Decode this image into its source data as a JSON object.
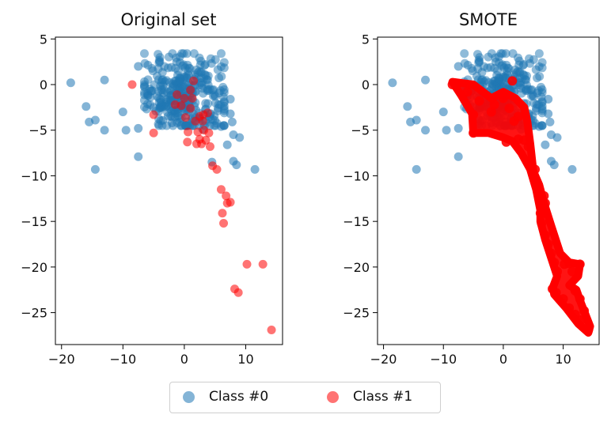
{
  "colors": {
    "class0": "#1f77b4",
    "class1": "#ff0000",
    "axis": "#000000"
  },
  "legend": {
    "class0_label": "Class #0",
    "class1_label": "Class #1"
  },
  "chart_data": [
    {
      "type": "scatter",
      "title": "Original set",
      "xlabel": "",
      "ylabel": "",
      "xlim": [
        -21,
        16
      ],
      "ylim": [
        -28.5,
        5.2
      ],
      "xticks": [
        -20,
        -10,
        0,
        10
      ],
      "yticks": [
        5,
        0,
        -5,
        -10,
        -15,
        -20,
        -25
      ],
      "series": [
        {
          "name": "Class #0",
          "cluster": {
            "center": [
              0,
              -1
            ],
            "spread": [
              3.5,
              2.2
            ],
            "count": 320
          },
          "points": [
            [
              -18.5,
              0.2
            ],
            [
              -13,
              0.5
            ],
            [
              -16,
              -2.4
            ],
            [
              -14.5,
              -3.9
            ],
            [
              -15.5,
              -4.1
            ],
            [
              -13,
              -5
            ],
            [
              -14.5,
              -9.3
            ],
            [
              -10,
              -3
            ],
            [
              -9.5,
              -5
            ],
            [
              -7.5,
              -7.9
            ],
            [
              -7.5,
              -4.8
            ],
            [
              -7.5,
              2
            ],
            [
              -6,
              -1
            ],
            [
              -5,
              -2.5
            ],
            [
              -4,
              2.5
            ],
            [
              -2,
              -4.2
            ],
            [
              5,
              -1.3
            ],
            [
              5.5,
              -2.6
            ],
            [
              7.5,
              -1.6
            ],
            [
              7.5,
              -3.2
            ],
            [
              7.8,
              -4.1
            ],
            [
              8,
              -5.5
            ],
            [
              7,
              -6.6
            ],
            [
              9,
              -5.8
            ],
            [
              8,
              -8.4
            ],
            [
              8.5,
              -8.8
            ],
            [
              11.5,
              -9.3
            ],
            [
              4.5,
              -8.5
            ],
            [
              6,
              -4.6
            ],
            [
              3,
              -4.9
            ]
          ]
        },
        {
          "name": "Class #1",
          "points": [
            [
              -8.5,
              0
            ],
            [
              -5,
              -3.3
            ],
            [
              -5,
              -5.3
            ],
            [
              -1.5,
              -2.2
            ],
            [
              -0.5,
              -2.3
            ],
            [
              0,
              -1.5
            ],
            [
              1,
              -2.6
            ],
            [
              1.3,
              -1.5
            ],
            [
              1,
              -0.6
            ],
            [
              1.5,
              0.4
            ],
            [
              1.8,
              -4
            ],
            [
              2.2,
              -5.2
            ],
            [
              2.5,
              -3.5
            ],
            [
              3,
              -4
            ],
            [
              3.2,
              -5
            ],
            [
              3.5,
              -6.1
            ],
            [
              2.5,
              -6
            ],
            [
              2.8,
              -6.5
            ],
            [
              2,
              -6.5
            ],
            [
              0.5,
              -6.3
            ],
            [
              0.6,
              -5.2
            ],
            [
              4.2,
              -6.8
            ],
            [
              4,
              -5.3
            ],
            [
              4.6,
              -8.9
            ],
            [
              5.3,
              -9.3
            ],
            [
              6,
              -11.5
            ],
            [
              6.8,
              -12.2
            ],
            [
              7,
              -13
            ],
            [
              6.2,
              -14.1
            ],
            [
              6.4,
              -15.2
            ],
            [
              7.5,
              -12.9
            ],
            [
              10.2,
              -19.7
            ],
            [
              12.8,
              -19.7
            ],
            [
              8.2,
              -22.4
            ],
            [
              8.8,
              -22.8
            ],
            [
              14.2,
              -26.9
            ],
            [
              3.1,
              -3.3
            ],
            [
              3.8,
              -3.1
            ],
            [
              -1.2,
              -1.1
            ],
            [
              0.2,
              -3.6
            ]
          ]
        }
      ]
    },
    {
      "type": "scatter",
      "title": "SMOTE",
      "xlabel": "",
      "ylabel": "",
      "xlim": [
        -21,
        16
      ],
      "ylim": [
        -28.5,
        5.2
      ],
      "xticks": [
        -20,
        -10,
        0,
        10
      ],
      "yticks": [
        5,
        0,
        -5,
        -10,
        -15,
        -20,
        -25
      ],
      "series": [
        {
          "name": "Class #0",
          "cluster": {
            "center": [
              0,
              -1
            ],
            "spread": [
              3.5,
              2.2
            ],
            "count": 320
          },
          "points": [
            [
              -18.5,
              0.2
            ],
            [
              -13,
              0.5
            ],
            [
              -16,
              -2.4
            ],
            [
              -14.5,
              -3.9
            ],
            [
              -15.5,
              -4.1
            ],
            [
              -13,
              -5
            ],
            [
              -14.5,
              -9.3
            ],
            [
              -10,
              -3
            ],
            [
              -9.5,
              -5
            ],
            [
              -7.5,
              -7.9
            ],
            [
              -7.5,
              -4.8
            ],
            [
              -7.5,
              2
            ],
            [
              -6,
              -1
            ],
            [
              -5,
              -2.5
            ],
            [
              -4,
              2.5
            ],
            [
              -2,
              -4.2
            ],
            [
              5,
              -1.3
            ],
            [
              5.5,
              -2.6
            ],
            [
              7.5,
              -1.6
            ],
            [
              7.5,
              -3.2
            ],
            [
              7.8,
              -4.1
            ],
            [
              8,
              -5.5
            ],
            [
              7,
              -6.6
            ],
            [
              9,
              -5.8
            ],
            [
              8,
              -8.4
            ],
            [
              8.5,
              -8.8
            ],
            [
              11.5,
              -9.3
            ],
            [
              4.5,
              -8.5
            ],
            [
              6,
              -4.6
            ],
            [
              3,
              -4.9
            ]
          ]
        },
        {
          "name": "Class #1",
          "polygon": [
            [
              -8.5,
              0.3
            ],
            [
              -5,
              0
            ],
            [
              -2,
              -1.5
            ],
            [
              0,
              -0.8
            ],
            [
              2,
              -1.5
            ],
            [
              3.5,
              -2.5
            ],
            [
              4,
              -4
            ],
            [
              4.5,
              -6.5
            ],
            [
              5,
              -9.5
            ],
            [
              6,
              -11
            ],
            [
              6.8,
              -13
            ],
            [
              8,
              -15.5
            ],
            [
              9.5,
              -18.5
            ],
            [
              11,
              -19.5
            ],
            [
              12.8,
              -19.7
            ],
            [
              12.5,
              -21
            ],
            [
              11,
              -22
            ],
            [
              12.2,
              -22.5
            ],
            [
              13,
              -24
            ],
            [
              14.5,
              -26.5
            ],
            [
              14.2,
              -27.2
            ],
            [
              12.5,
              -26.2
            ],
            [
              10.5,
              -24.5
            ],
            [
              8.5,
              -23
            ],
            [
              8.3,
              -22.2
            ],
            [
              9,
              -21
            ],
            [
              7,
              -17
            ],
            [
              6.2,
              -15
            ],
            [
              6.2,
              -13.8
            ],
            [
              5.5,
              -11.5
            ],
            [
              4.5,
              -9.3
            ],
            [
              3,
              -7.5
            ],
            [
              1.5,
              -6.2
            ],
            [
              0,
              -5.8
            ],
            [
              -2.5,
              -5.3
            ],
            [
              -5,
              -5.3
            ],
            [
              -5.2,
              -3.2
            ],
            [
              -7,
              -1.2
            ]
          ],
          "points": [
            [
              -8.5,
              0
            ],
            [
              -6,
              -0.8
            ],
            [
              -4,
              -1.8
            ],
            [
              -2,
              -3
            ],
            [
              -5,
              -3.3
            ],
            [
              -5,
              -5.3
            ],
            [
              -1.5,
              -2.2
            ],
            [
              0,
              -1.5
            ],
            [
              1,
              -2.6
            ],
            [
              1.5,
              0.4
            ],
            [
              1.8,
              -4
            ],
            [
              2.5,
              -3.5
            ],
            [
              3.5,
              -6.1
            ],
            [
              2.5,
              -6
            ],
            [
              0.5,
              -6.3
            ],
            [
              4.2,
              -6.8
            ],
            [
              4.6,
              -8.9
            ],
            [
              5.3,
              -9.3
            ],
            [
              5.5,
              -10.5
            ],
            [
              6,
              -11.5
            ],
            [
              6.8,
              -12.2
            ],
            [
              7,
              -13
            ],
            [
              6.2,
              -14.1
            ],
            [
              6.4,
              -15.2
            ],
            [
              7,
              -16.5
            ],
            [
              7.5,
              -17.5
            ],
            [
              8,
              -18.5
            ],
            [
              8.5,
              -19.5
            ],
            [
              9,
              -20.5
            ],
            [
              10.2,
              -19.7
            ],
            [
              11,
              -19.6
            ],
            [
              12.8,
              -19.7
            ],
            [
              11.5,
              -20.5
            ],
            [
              8.2,
              -22.4
            ],
            [
              8.8,
              -22.8
            ],
            [
              10,
              -23.5
            ],
            [
              11,
              -24.5
            ],
            [
              12,
              -25.2
            ],
            [
              13,
              -25.8
            ],
            [
              14.2,
              -26.9
            ],
            [
              12,
              -22.6
            ],
            [
              12.8,
              -23.5
            ],
            [
              13.5,
              -24.8
            ]
          ]
        }
      ]
    }
  ]
}
